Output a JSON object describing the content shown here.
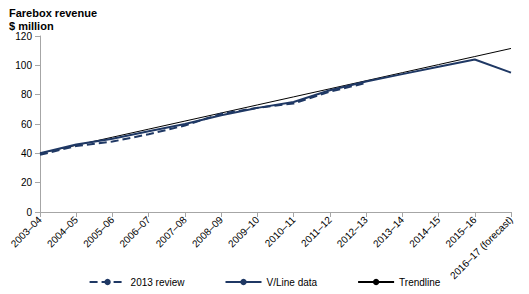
{
  "chart_data": {
    "type": "line",
    "title": "Farebox revenue",
    "y_label": "$ million",
    "categories": [
      "2003–04",
      "2004–05",
      "2005–06",
      "2006–07",
      "2007–08",
      "2008–09",
      "2009–10",
      "2010–11",
      "2011–12",
      "2012–13",
      "2013–14",
      "2014–15",
      "2015–16",
      "2016–17 (forecast)"
    ],
    "series": [
      {
        "name": "2013 review",
        "color": "#1f3864",
        "line_style": "dashed",
        "values": [
          39,
          45,
          48,
          53,
          59,
          67,
          71,
          74,
          82,
          88,
          null,
          null,
          null,
          null
        ]
      },
      {
        "name": "V/Line data",
        "color": "#1f3864",
        "line_style": "solid",
        "values": [
          40,
          46,
          50,
          55,
          60,
          66,
          71,
          75,
          83,
          89,
          94,
          99,
          104,
          95
        ]
      },
      {
        "name": "Trendline",
        "color": "#000000",
        "line_style": "thin",
        "values": [
          40,
          45.5,
          51,
          56.5,
          62,
          67.5,
          73,
          78.5,
          84,
          89.5,
          95,
          100.5,
          106,
          111.5
        ]
      }
    ],
    "ylim": [
      0,
      120
    ],
    "yticks": [
      0,
      20,
      40,
      60,
      80,
      100,
      120
    ],
    "grid": false,
    "legend": "bottom"
  }
}
